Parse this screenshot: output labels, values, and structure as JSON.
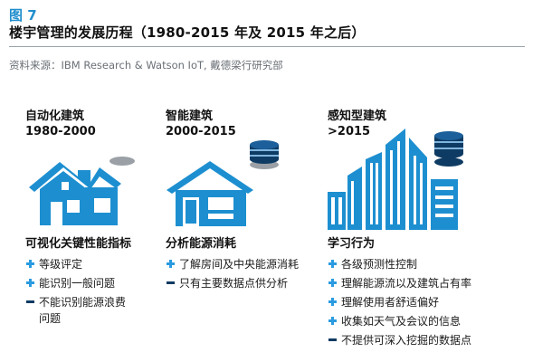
{
  "figure": {
    "label": "图 7",
    "title": "楼宇管理的发展历程（1980-2015 年及 2015 年之后）",
    "source": "资料来源：IBM Research & Watson IoT, 戴德梁行研究部"
  },
  "colors": {
    "accent_light": "#2a9be0",
    "accent_dark": "#0e3b63",
    "building_blue": "#1d8fd0",
    "gray_disc": "#9aa0a6"
  },
  "columns": [
    {
      "stage": "自动化建筑",
      "period": "1980-2000",
      "icon": "house-icon",
      "capability": "可视化关键性能指标",
      "items": [
        {
          "marker": "plus",
          "text": "等级评定"
        },
        {
          "marker": "plus",
          "text": "能识别一般问题"
        },
        {
          "marker": "minus",
          "text": "不能识别能源浪费",
          "text2": "问题"
        }
      ]
    },
    {
      "stage": "智能建筑",
      "period": "2000-2015",
      "icon": "smart-house-icon",
      "capability": "分析能源消耗",
      "items": [
        {
          "marker": "plus",
          "text": "了解房间及中央能源消耗"
        },
        {
          "marker": "minus",
          "text": "只有主要数据点供分析"
        }
      ]
    },
    {
      "stage": "感知型建筑",
      "period": ">2015",
      "icon": "cognitive-buildings-icon",
      "capability": "学习行为",
      "items": [
        {
          "marker": "plus",
          "text": "各级预测性控制"
        },
        {
          "marker": "plus",
          "text": "理解能源流以及建筑占有率"
        },
        {
          "marker": "plus",
          "text": "理解使用者舒适偏好"
        },
        {
          "marker": "plus",
          "text": "收集如天气及会议的信息"
        },
        {
          "marker": "minus",
          "text": "不提供可深入挖掘的数据点"
        }
      ]
    }
  ]
}
